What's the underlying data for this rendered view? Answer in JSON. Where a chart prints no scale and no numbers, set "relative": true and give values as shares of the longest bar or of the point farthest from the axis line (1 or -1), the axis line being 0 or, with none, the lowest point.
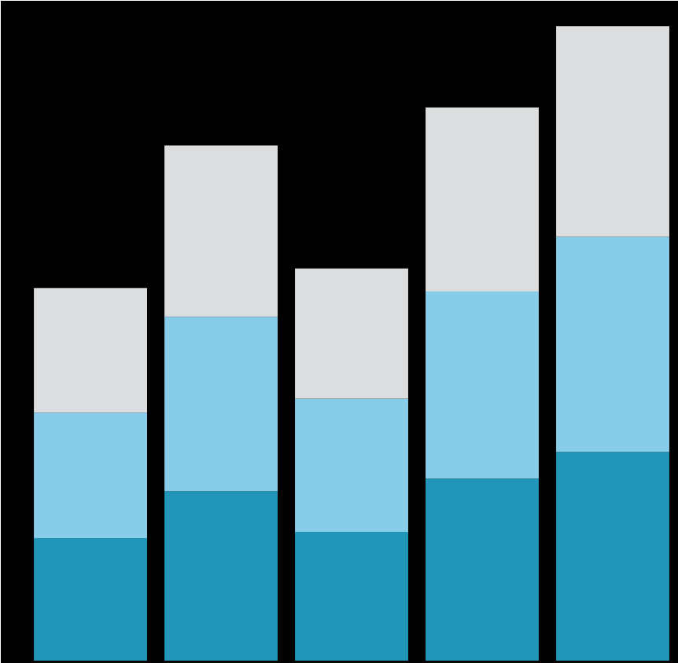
{
  "chart_data": {
    "type": "bar",
    "stacked": true,
    "relative": true,
    "categories": [
      null,
      null,
      null,
      null,
      null
    ],
    "series": [
      {
        "color": "#2196b8",
        "values": [
          0.193,
          0.267,
          0.203,
          0.287,
          0.329
        ]
      },
      {
        "color": "#87cde9",
        "values": [
          0.198,
          0.275,
          0.21,
          0.295,
          0.339
        ]
      },
      {
        "color": "#dcdddf",
        "values": [
          0.196,
          0.27,
          0.205,
          0.29,
          0.332
        ]
      }
    ]
  }
}
